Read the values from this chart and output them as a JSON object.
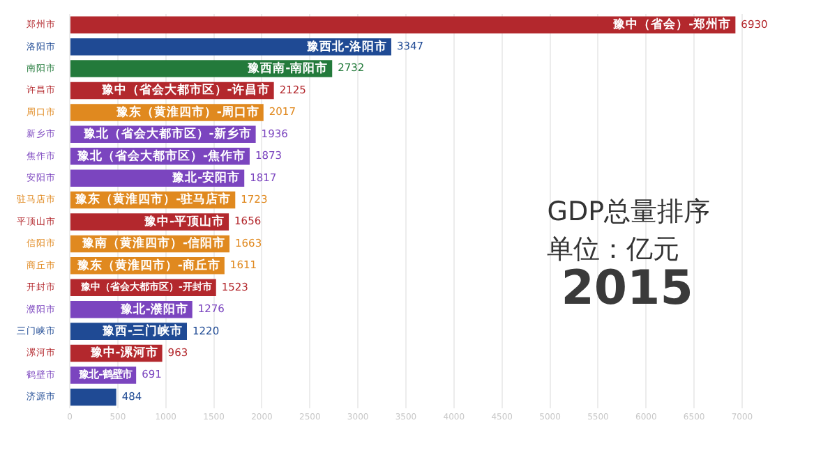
{
  "chart_data": {
    "type": "bar",
    "orientation": "horizontal",
    "title": "GDP总量排序",
    "subtitle": "单位：亿元",
    "categories": [
      "郑州市",
      "洛阳市",
      "南阳市",
      "许昌市",
      "周口市",
      "新乡市",
      "焦作市",
      "安阳市",
      "驻马店市",
      "平顶山市",
      "信阳市",
      "商丘市",
      "开封市",
      "濮阳市",
      "三门峡市",
      "漯河市",
      "鹤壁市",
      "济源市"
    ],
    "values": [
      6930,
      3347,
      2732,
      2125,
      2017,
      1936,
      1873,
      1817,
      1723,
      1656,
      1663,
      1611,
      1523,
      1276,
      1220,
      963,
      691,
      484
    ],
    "colors": [
      "#b3282d",
      "#1f4a94",
      "#237a3b",
      "#b3282d",
      "#e0891f",
      "#7b45bf",
      "#7b45bf",
      "#7b45bf",
      "#e0891f",
      "#b3282d",
      "#e0891f",
      "#e0891f",
      "#b3282d",
      "#7b45bf",
      "#1f4a94",
      "#b3282d",
      "#7b45bf",
      "#1f4a94"
    ],
    "xlim": [
      0,
      7000
    ],
    "xticks": [
      0,
      500,
      1000,
      1500,
      2000,
      2500,
      3000,
      3500,
      4000,
      4500,
      5000,
      5500,
      6000,
      6500,
      7000
    ],
    "grid": "x",
    "data_labels": true,
    "annotations": [
      {
        "text": "豫中（省会）-郑州市",
        "x": 6930,
        "y": "郑州市"
      },
      {
        "text": "豫西北-洛阳市",
        "x": 3347,
        "y": "洛阳市"
      },
      {
        "text": "豫西南-南阳市",
        "x": 2732,
        "y": "南阳市"
      },
      {
        "text": "豫中（省会大都市区）-许昌市",
        "x": 2125,
        "y": "许昌市"
      },
      {
        "text": "豫东（黄淮四市）-周口市",
        "x": 2017,
        "y": "周口市"
      },
      {
        "text": "豫北（省会大都市区）-新乡市",
        "x": 1936,
        "y": "新乡市"
      },
      {
        "text": "豫北（省会大都市区）-焦作市",
        "x": 1873,
        "y": "焦作市"
      },
      {
        "text": "豫北-安阳市",
        "x": 1817,
        "y": "安阳市"
      },
      {
        "text": "豫东（黄淮四市）-驻马店市",
        "x": 1723,
        "y": "驻马店市"
      },
      {
        "text": "豫中-平顶山市",
        "x": 1656,
        "y": "平顶山市"
      },
      {
        "text": "豫南（黄淮四市）-信阳市",
        "x": 1663,
        "y": "信阳市"
      },
      {
        "text": "豫东（黄淮四市）-商丘市",
        "x": 1611,
        "y": "商丘市"
      },
      {
        "text": "豫中（省会大都市区）-开封市",
        "x": 1523,
        "y": "开封市"
      },
      {
        "text": "豫北-濮阳市",
        "x": 1276,
        "y": "濮阳市"
      },
      {
        "text": "豫西-三门峡市",
        "x": 1220,
        "y": "三门峡市"
      },
      {
        "text": "豫中-漯河市",
        "x": 963,
        "y": "漯河市"
      },
      {
        "text": "豫北-鹤壁市",
        "x": 691,
        "y": "鹤壁市"
      },
      "2015"
    ]
  }
}
